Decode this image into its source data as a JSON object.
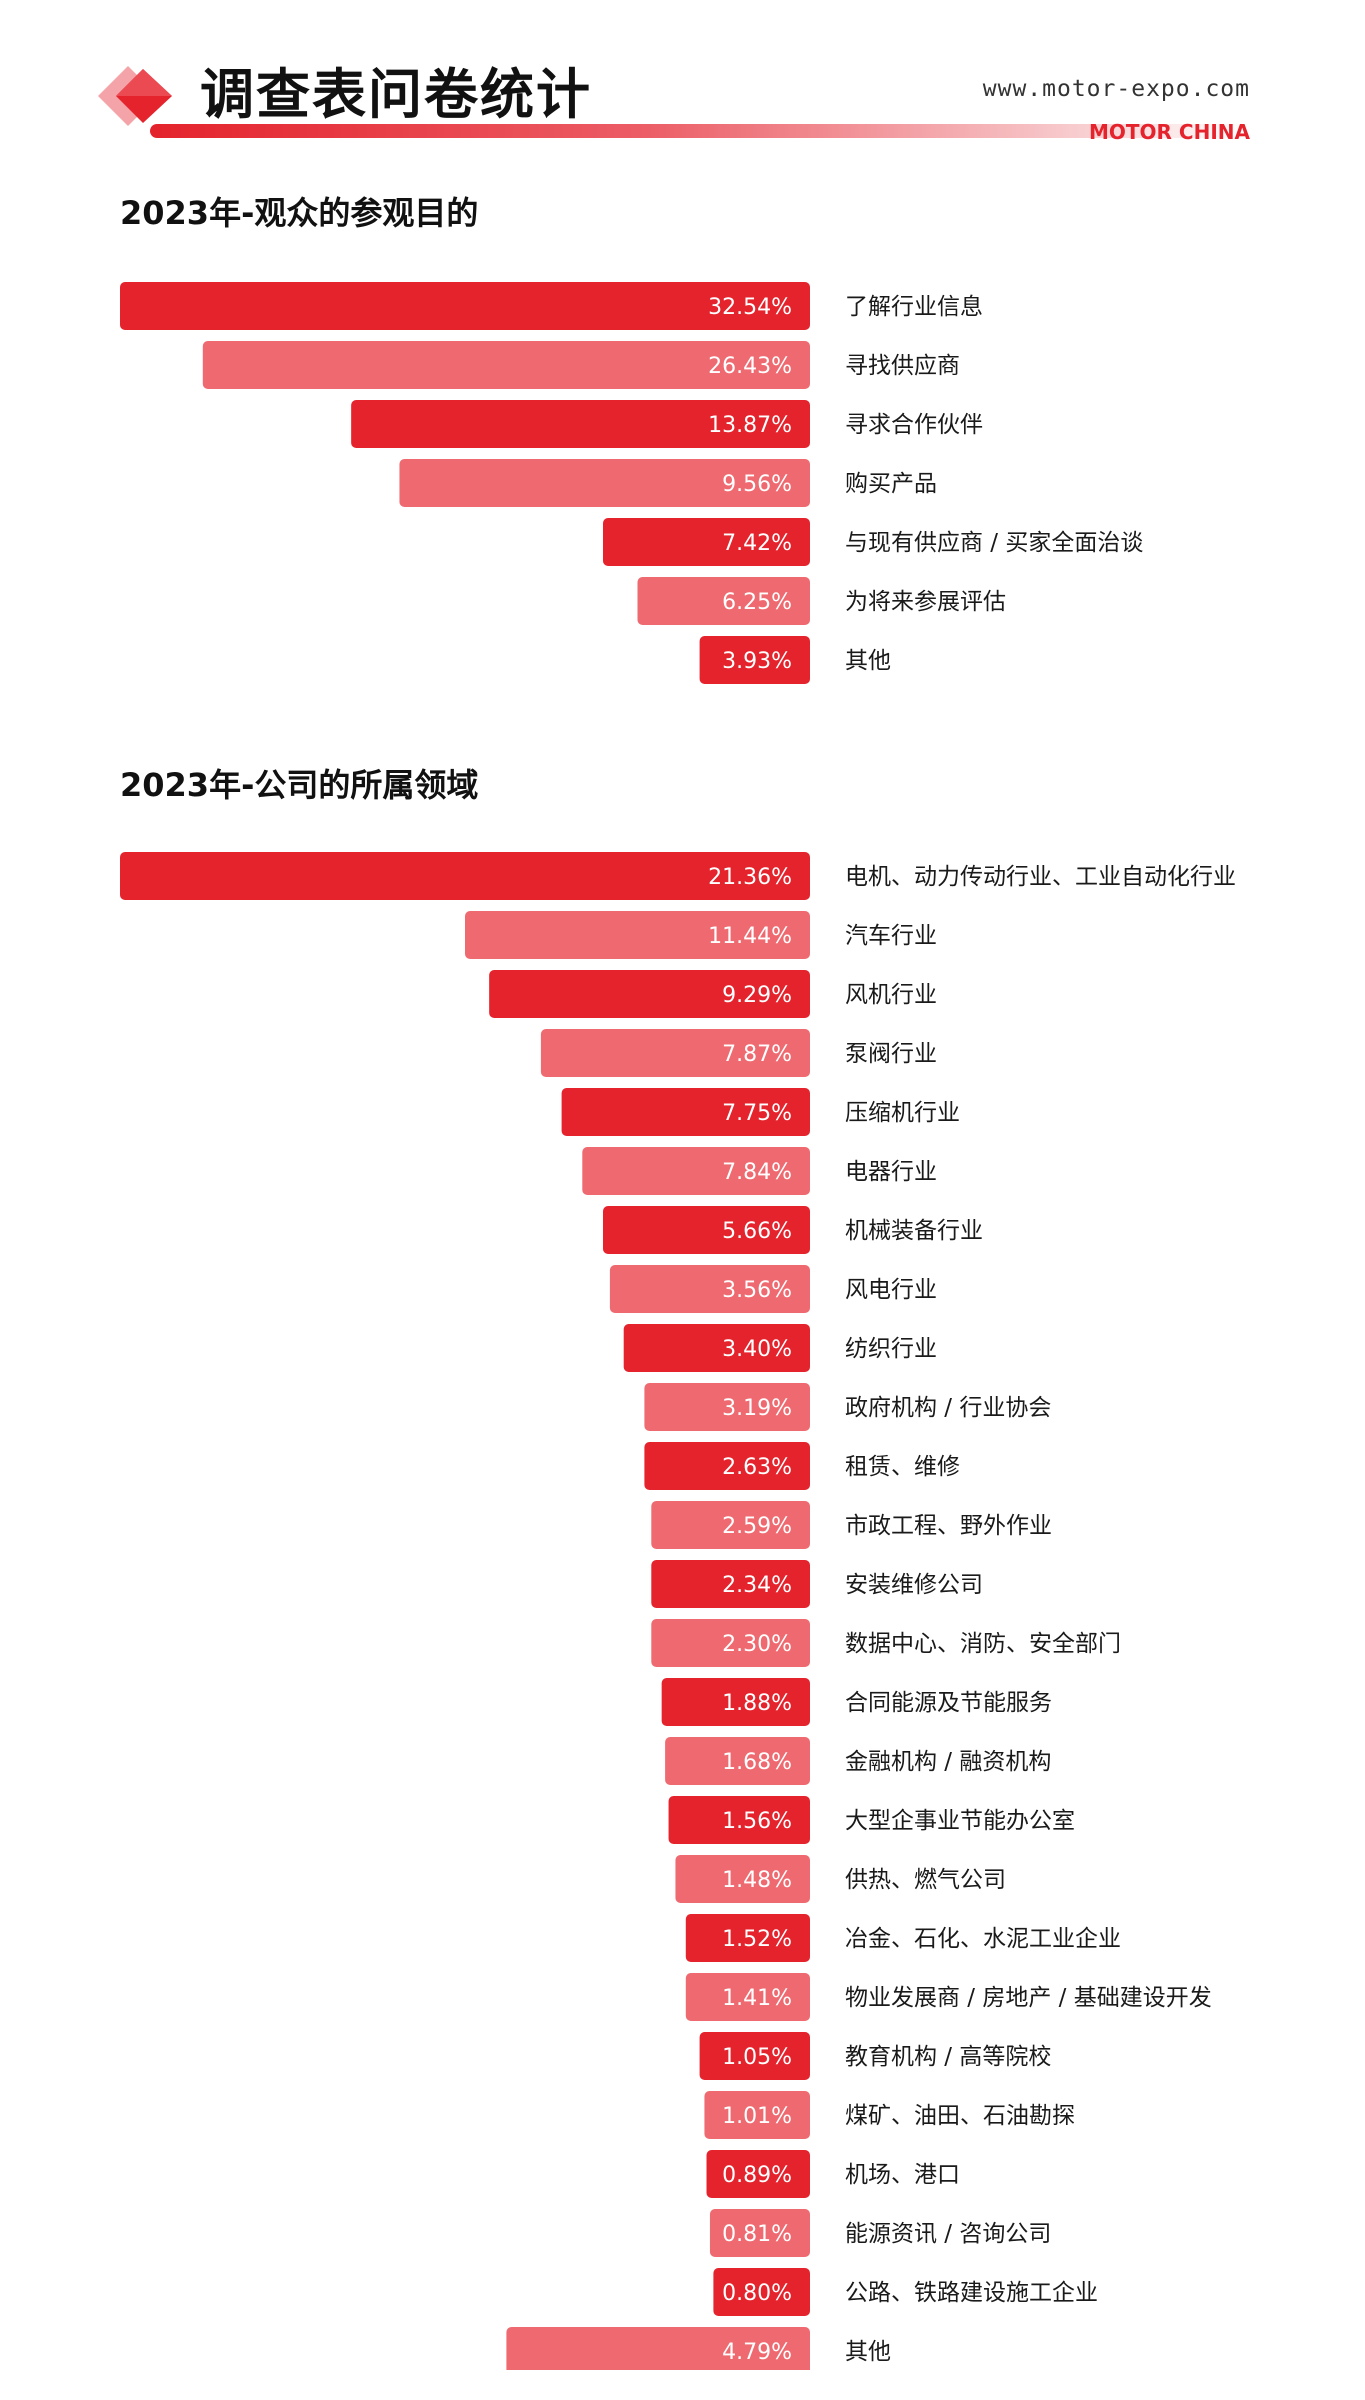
{
  "header": {
    "title": "调查表问卷统计",
    "url": "www.motor-expo.com",
    "brand": "MOTOR CHINA",
    "logo_icon": "red-diamond-logo-icon"
  },
  "colors": {
    "bar_dark": "#e4232c",
    "bar_light": "#ee6a70",
    "accent": "#e4232c"
  },
  "chart_data": [
    {
      "type": "bar",
      "title": "2023年-观众的参观目的",
      "orientation": "horizontal",
      "unit": "%",
      "categories": [
        "了解行业信息",
        "寻找供应商",
        "寻求合作伙伴",
        "购买产品",
        "与现有供应商 / 买家全面治谈",
        "为将来参展评估",
        "其他"
      ],
      "values": [
        32.54,
        26.43,
        13.87,
        9.56,
        7.42,
        6.25,
        3.93
      ],
      "value_labels": [
        "32.54%",
        "26.43%",
        "13.87%",
        "9.56%",
        "7.42%",
        "6.25%",
        "3.93%"
      ],
      "bar_widths_pct": [
        100,
        88,
        66.5,
        59.5,
        30,
        25,
        16
      ],
      "grid": false,
      "legend": "none"
    },
    {
      "type": "bar",
      "title": "2023年-公司的所属领域",
      "orientation": "horizontal",
      "unit": "%",
      "categories": [
        "电机、动力传动行业、工业自动化行业",
        "汽车行业",
        "风机行业",
        "泵阀行业",
        "压缩机行业",
        "电器行业",
        "机械装备行业",
        "风电行业",
        "纺织行业",
        "政府机构 / 行业协会",
        "租赁、维修",
        "市政工程、野外作业",
        "安装维修公司",
        "数据中心、消防、安全部门",
        "合同能源及节能服务",
        "金融机构 / 融资机构",
        "大型企事业节能办公室",
        "供热、燃气公司",
        "冶金、石化、水泥工业企业",
        "物业发展商 / 房地产 / 基础建设开发",
        "教育机构 / 高等院校",
        "煤矿、油田、石油勘探",
        "机场、港口",
        "能源资讯 / 咨询公司",
        "公路、铁路建设施工企业",
        "其他"
      ],
      "values": [
        21.36,
        11.44,
        9.29,
        7.87,
        7.75,
        7.84,
        5.66,
        3.56,
        3.4,
        3.19,
        2.63,
        2.59,
        2.34,
        2.3,
        1.88,
        1.68,
        1.56,
        1.48,
        1.52,
        1.41,
        1.05,
        1.01,
        0.89,
        0.81,
        0.8,
        4.79
      ],
      "value_labels": [
        "21.36%",
        "11.44%",
        "9.29%",
        "7.87%",
        "7.75%",
        "7.84%",
        "5.66%",
        "3.56%",
        "3.40%",
        "3.19%",
        "2.63%",
        "2.59%",
        "2.34%",
        "2.30%",
        "1.88%",
        "1.68%",
        "1.56%",
        "1.48%",
        "1.52%",
        "1.41%",
        "1.05%",
        "1.01%",
        "0.89%",
        "0.81%",
        "0.80%",
        "4.79%"
      ],
      "bar_widths_pct": [
        100,
        50,
        46.5,
        39,
        36,
        33,
        30,
        29,
        27,
        24,
        24,
        23,
        23,
        23,
        21.5,
        21,
        20.5,
        19.5,
        18,
        18,
        16,
        15.3,
        15,
        14.5,
        14,
        44
      ],
      "grid": false,
      "legend": "none"
    }
  ]
}
